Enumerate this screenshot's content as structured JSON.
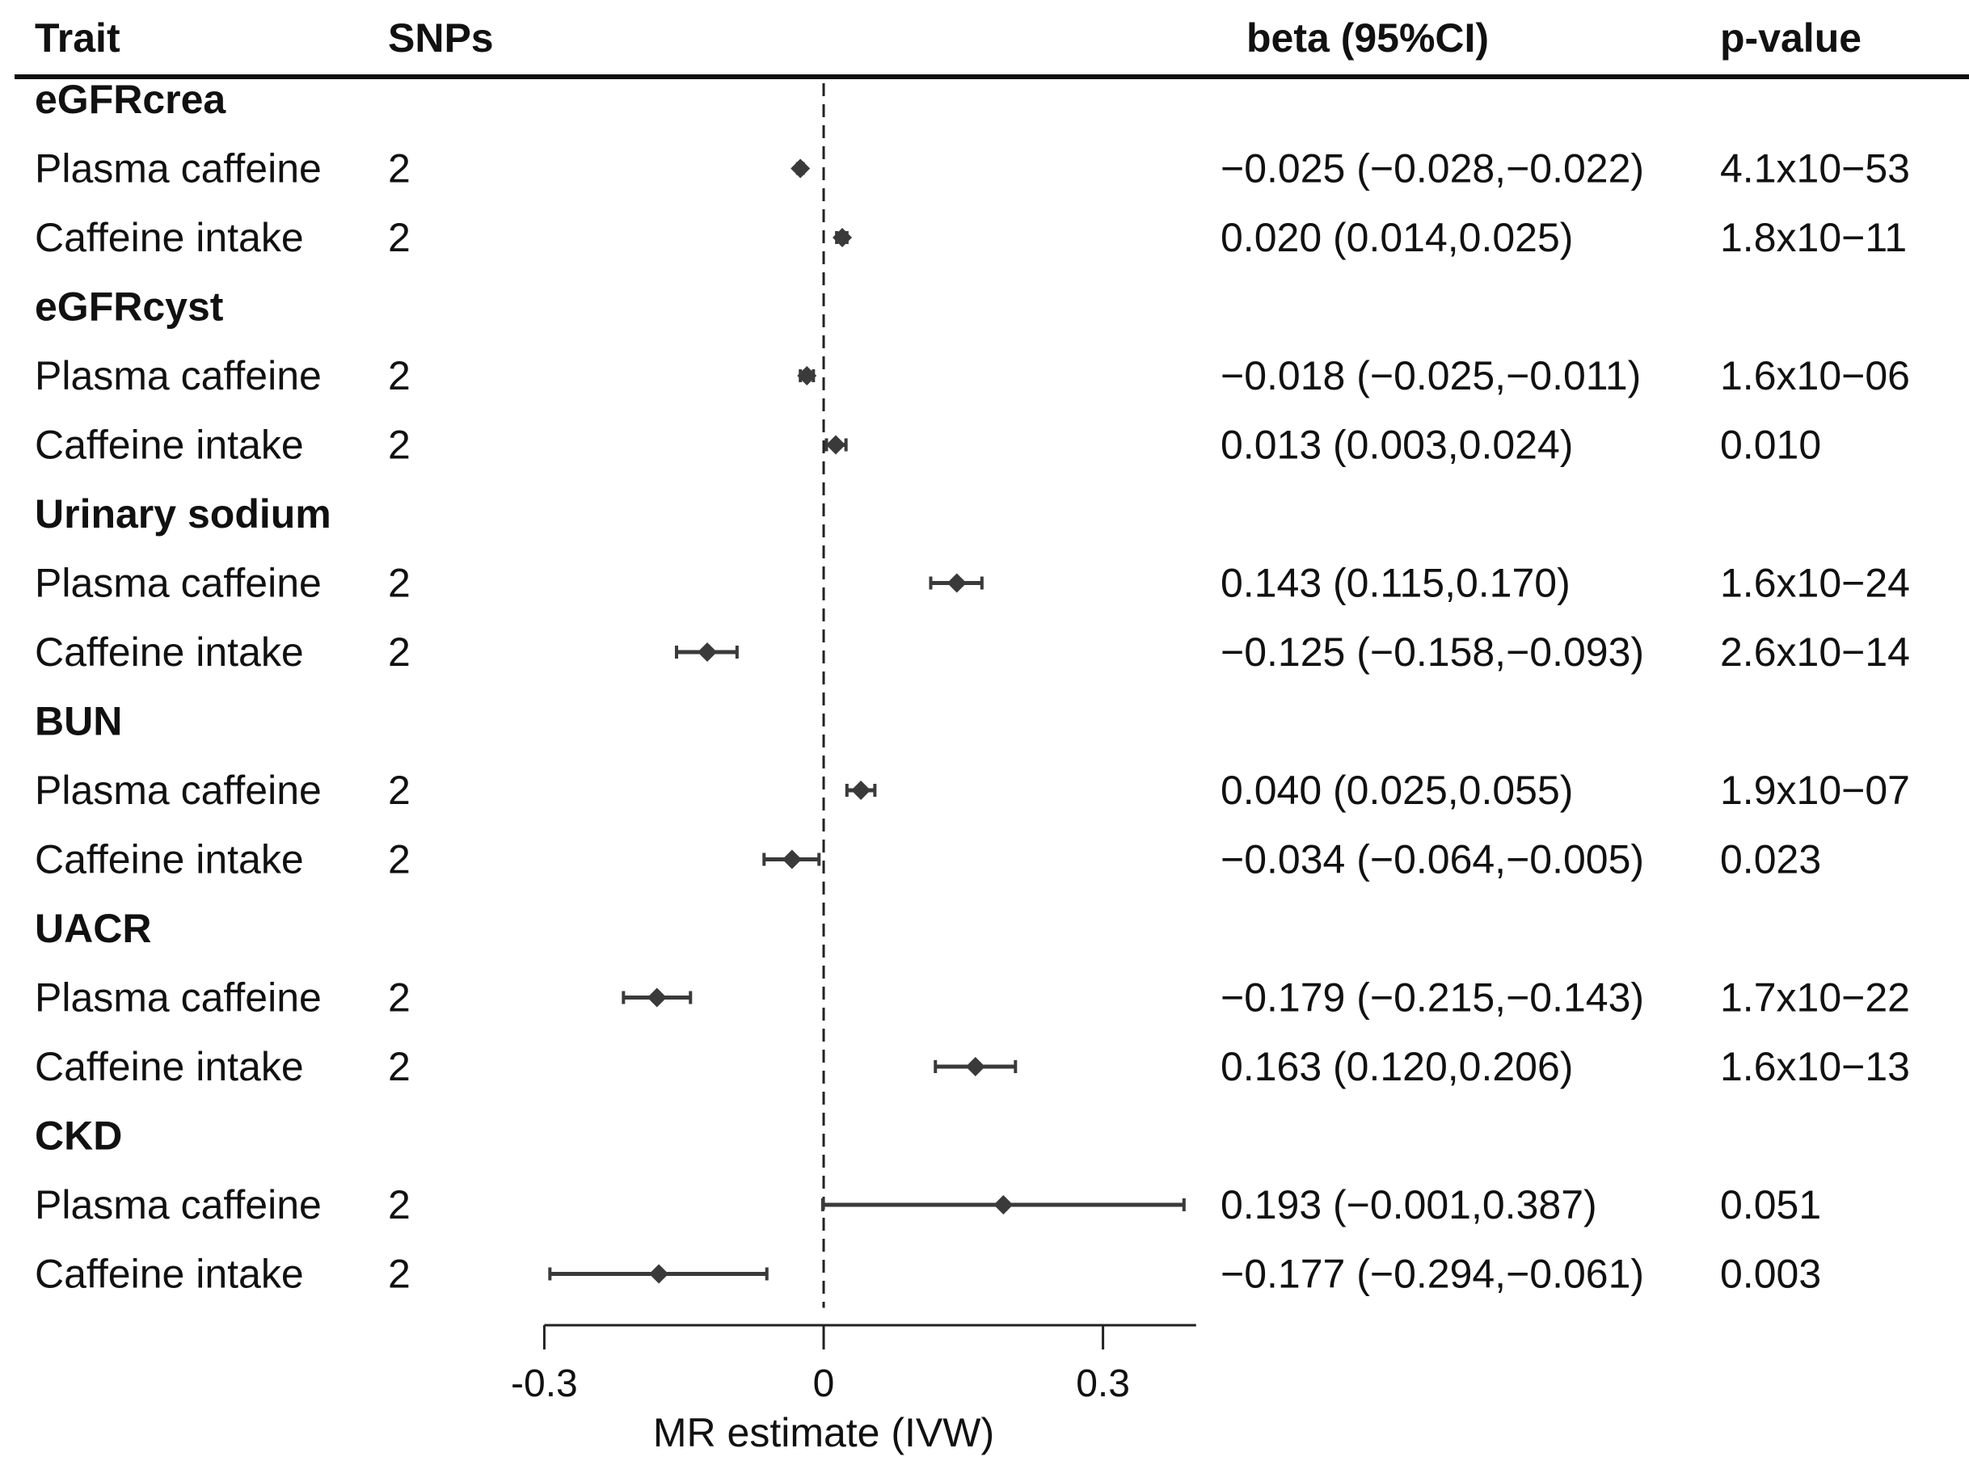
{
  "headers": {
    "trait": "Trait",
    "snps": "SNPs",
    "beta": "beta (95%CI)",
    "pvalue": "p-value"
  },
  "chart_data": {
    "type": "forest",
    "xlabel": "MR estimate (IVW)",
    "xlim": [
      -0.3,
      0.4
    ],
    "xticks": [
      -0.3,
      0,
      0.3
    ],
    "xtick_labels": [
      "-0.3",
      "0",
      "0.3"
    ],
    "reference_line": 0,
    "groups": [
      {
        "name": "eGFRcrea",
        "rows": [
          {
            "exposure": "Plasma caffeine",
            "snps": "2",
            "beta": -0.025,
            "lower": -0.028,
            "upper": -0.022,
            "ci_text": "−0.025 (−0.028,−0.022)",
            "p_text": "4.1x10−53"
          },
          {
            "exposure": "Caffeine intake",
            "snps": "2",
            "beta": 0.02,
            "lower": 0.014,
            "upper": 0.025,
            "ci_text": "0.020 (0.014,0.025)",
            "p_text": "1.8x10−11"
          }
        ]
      },
      {
        "name": "eGFRcyst",
        "rows": [
          {
            "exposure": "Plasma caffeine",
            "snps": "2",
            "beta": -0.018,
            "lower": -0.025,
            "upper": -0.011,
            "ci_text": "−0.018 (−0.025,−0.011)",
            "p_text": "1.6x10−06"
          },
          {
            "exposure": "Caffeine intake",
            "snps": "2",
            "beta": 0.013,
            "lower": 0.003,
            "upper": 0.024,
            "ci_text": "0.013 (0.003,0.024)",
            "p_text": "0.010"
          }
        ]
      },
      {
        "name": "Urinary sodium",
        "rows": [
          {
            "exposure": "Plasma caffeine",
            "snps": "2",
            "beta": 0.143,
            "lower": 0.115,
            "upper": 0.17,
            "ci_text": "0.143 (0.115,0.170)",
            "p_text": "1.6x10−24"
          },
          {
            "exposure": "Caffeine intake",
            "snps": "2",
            "beta": -0.125,
            "lower": -0.158,
            "upper": -0.093,
            "ci_text": "−0.125 (−0.158,−0.093)",
            "p_text": "2.6x10−14"
          }
        ]
      },
      {
        "name": "BUN",
        "rows": [
          {
            "exposure": "Plasma caffeine",
            "snps": "2",
            "beta": 0.04,
            "lower": 0.025,
            "upper": 0.055,
            "ci_text": "0.040 (0.025,0.055)",
            "p_text": "1.9x10−07"
          },
          {
            "exposure": "Caffeine intake",
            "snps": "2",
            "beta": -0.034,
            "lower": -0.064,
            "upper": -0.005,
            "ci_text": "−0.034 (−0.064,−0.005)",
            "p_text": "0.023"
          }
        ]
      },
      {
        "name": "UACR",
        "rows": [
          {
            "exposure": "Plasma caffeine",
            "snps": "2",
            "beta": -0.179,
            "lower": -0.215,
            "upper": -0.143,
            "ci_text": "−0.179 (−0.215,−0.143)",
            "p_text": "1.7x10−22"
          },
          {
            "exposure": "Caffeine intake",
            "snps": "2",
            "beta": 0.163,
            "lower": 0.12,
            "upper": 0.206,
            "ci_text": "0.163 (0.120,0.206)",
            "p_text": "1.6x10−13"
          }
        ]
      },
      {
        "name": "CKD",
        "rows": [
          {
            "exposure": "Plasma caffeine",
            "snps": "2",
            "beta": 0.193,
            "lower": -0.001,
            "upper": 0.387,
            "ci_text": "0.193 (−0.001,0.387)",
            "p_text": "0.051"
          },
          {
            "exposure": "Caffeine intake",
            "snps": "2",
            "beta": -0.177,
            "lower": -0.294,
            "upper": -0.061,
            "ci_text": "−0.177 (−0.294,−0.061)",
            "p_text": "0.003"
          }
        ]
      }
    ]
  }
}
